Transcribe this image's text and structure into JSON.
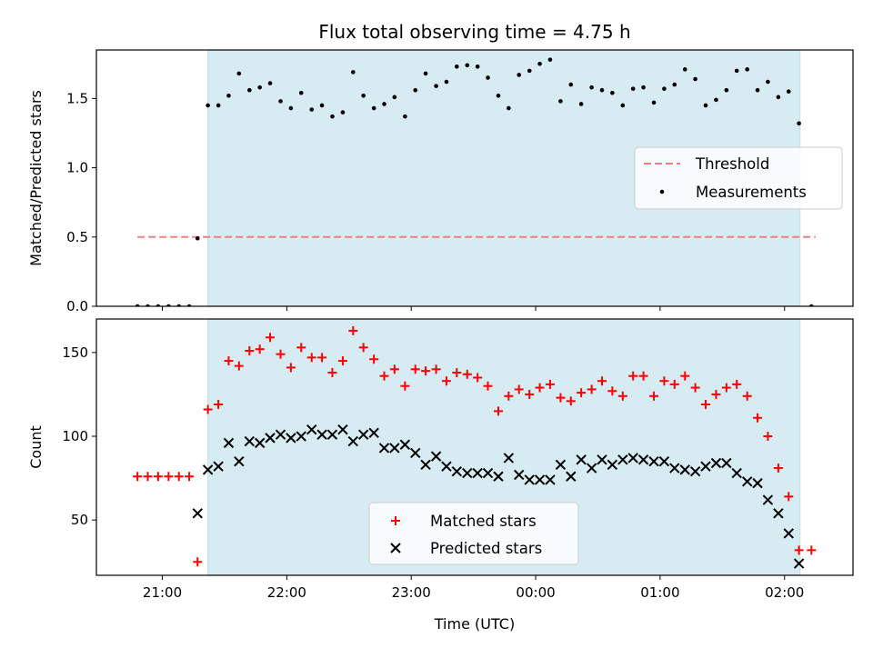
{
  "chart_data": [
    {
      "panel": "top",
      "type": "scatter",
      "title": "Flux total observing time = 4.75 h",
      "ylabel": "Matched/Predicted stars",
      "ylim": [
        0,
        1.85
      ],
      "yticks": [
        0.0,
        0.5,
        1.0,
        1.5
      ],
      "ytick_labels": [
        "0.0",
        "0.5",
        "1.0",
        "1.5"
      ],
      "xlim_hours": [
        20.47,
        26.55
      ],
      "shaded_window_hours": [
        21.366,
        26.125
      ],
      "legend": {
        "position": "center-right",
        "entries": [
          "Threshold",
          "Measurements"
        ]
      },
      "threshold": {
        "name": "Threshold",
        "value": 0.5,
        "x_range_hours": [
          20.8,
          26.25
        ],
        "color": "#f08080",
        "style": "dashed"
      },
      "series": [
        {
          "name": "Measurements",
          "marker": "dot",
          "color": "#000000",
          "x_hours": [
            20.8,
            20.883,
            20.966,
            21.05,
            21.133,
            21.216,
            21.283,
            21.366,
            21.45,
            21.533,
            21.616,
            21.7,
            21.783,
            21.866,
            21.95,
            22.033,
            22.116,
            22.2,
            22.283,
            22.366,
            22.45,
            22.533,
            22.616,
            22.7,
            22.783,
            22.866,
            22.95,
            23.033,
            23.116,
            23.2,
            23.283,
            23.366,
            23.45,
            23.533,
            23.616,
            23.7,
            23.783,
            23.866,
            23.95,
            24.033,
            24.116,
            24.2,
            24.283,
            24.366,
            24.45,
            24.533,
            24.616,
            24.7,
            24.783,
            24.866,
            24.95,
            25.033,
            25.116,
            25.2,
            25.283,
            25.366,
            25.45,
            25.533,
            25.616,
            25.7,
            25.783,
            25.866,
            25.95,
            26.033,
            26.116,
            26.216
          ],
          "y": [
            0.0,
            0.0,
            0.0,
            0.0,
            0.0,
            0.0,
            0.49,
            1.45,
            1.45,
            1.52,
            1.68,
            1.56,
            1.58,
            1.61,
            1.48,
            1.43,
            1.54,
            1.42,
            1.45,
            1.37,
            1.4,
            1.69,
            1.52,
            1.43,
            1.46,
            1.51,
            1.37,
            1.56,
            1.68,
            1.59,
            1.62,
            1.73,
            1.74,
            1.73,
            1.65,
            1.52,
            1.43,
            1.67,
            1.7,
            1.75,
            1.78,
            1.48,
            1.6,
            1.46,
            1.58,
            1.56,
            1.54,
            1.45,
            1.57,
            1.58,
            1.47,
            1.57,
            1.6,
            1.71,
            1.64,
            1.45,
            1.49,
            1.56,
            1.7,
            1.71,
            1.56,
            1.62,
            1.51,
            1.55,
            1.32,
            0.0
          ]
        }
      ]
    },
    {
      "panel": "bottom",
      "type": "scatter",
      "xlabel": "Time (UTC)",
      "ylabel": "Count",
      "ylim": [
        17,
        170
      ],
      "yticks": [
        50,
        100,
        150
      ],
      "ytick_labels": [
        "50",
        "100",
        "150"
      ],
      "xlim_hours": [
        20.47,
        26.55
      ],
      "xticks_hours": [
        21,
        22,
        23,
        24,
        25,
        26
      ],
      "xtick_labels": [
        "21:00",
        "22:00",
        "23:00",
        "00:00",
        "01:00",
        "02:00"
      ],
      "shaded_window_hours": [
        21.366,
        26.125
      ],
      "legend": {
        "position": "lower-center",
        "entries": [
          "Matched stars",
          "Predicted stars"
        ]
      },
      "series": [
        {
          "name": "Matched stars",
          "marker": "plus",
          "color": "#ff0000",
          "x_hours": [
            20.8,
            20.883,
            20.966,
            21.05,
            21.133,
            21.216,
            21.283,
            21.366,
            21.45,
            21.533,
            21.616,
            21.7,
            21.783,
            21.866,
            21.95,
            22.033,
            22.116,
            22.2,
            22.283,
            22.366,
            22.45,
            22.533,
            22.616,
            22.7,
            22.783,
            22.866,
            22.95,
            23.033,
            23.116,
            23.2,
            23.283,
            23.366,
            23.45,
            23.533,
            23.616,
            23.7,
            23.783,
            23.866,
            23.95,
            24.033,
            24.116,
            24.2,
            24.283,
            24.366,
            24.45,
            24.533,
            24.616,
            24.7,
            24.783,
            24.866,
            24.95,
            25.033,
            25.116,
            25.2,
            25.283,
            25.366,
            25.45,
            25.533,
            25.616,
            25.7,
            25.783,
            25.866,
            25.95,
            26.033,
            26.116,
            26.216
          ],
          "y": [
            76,
            76,
            76,
            76,
            76,
            76,
            25,
            116,
            119,
            145,
            142,
            151,
            152,
            159,
            149,
            141,
            153,
            147,
            147,
            138,
            145,
            163,
            153,
            146,
            136,
            140,
            130,
            140,
            139,
            140,
            133,
            138,
            137,
            135,
            130,
            115,
            124,
            128,
            125,
            129,
            131,
            123,
            121,
            126,
            128,
            133,
            127,
            124,
            136,
            136,
            124,
            133,
            131,
            136,
            129,
            119,
            125,
            129,
            131,
            124,
            111,
            100,
            81,
            64,
            32,
            32
          ]
        },
        {
          "name": "Predicted stars",
          "marker": "x",
          "color": "#000000",
          "x_hours": [
            21.283,
            21.366,
            21.45,
            21.533,
            21.616,
            21.7,
            21.783,
            21.866,
            21.95,
            22.033,
            22.116,
            22.2,
            22.283,
            22.366,
            22.45,
            22.533,
            22.616,
            22.7,
            22.783,
            22.866,
            22.95,
            23.033,
            23.116,
            23.2,
            23.283,
            23.366,
            23.45,
            23.533,
            23.616,
            23.7,
            23.783,
            23.866,
            23.95,
            24.033,
            24.116,
            24.2,
            24.283,
            24.366,
            24.45,
            24.533,
            24.616,
            24.7,
            24.783,
            24.866,
            24.95,
            25.033,
            25.116,
            25.2,
            25.283,
            25.366,
            25.45,
            25.533,
            25.616,
            25.7,
            25.783,
            25.866,
            25.95,
            26.033,
            26.116
          ],
          "y": [
            54,
            80,
            82,
            96,
            85,
            97,
            96,
            99,
            101,
            99,
            100,
            104,
            101,
            101,
            104,
            97,
            101,
            102,
            93,
            93,
            95,
            90,
            83,
            88,
            82,
            79,
            78,
            78,
            78,
            76,
            87,
            77,
            74,
            74,
            74,
            83,
            76,
            86,
            81,
            86,
            83,
            86,
            87,
            86,
            85,
            85,
            81,
            80,
            79,
            82,
            84,
            84,
            78,
            73,
            72,
            62,
            54,
            42,
            24
          ]
        }
      ]
    }
  ]
}
